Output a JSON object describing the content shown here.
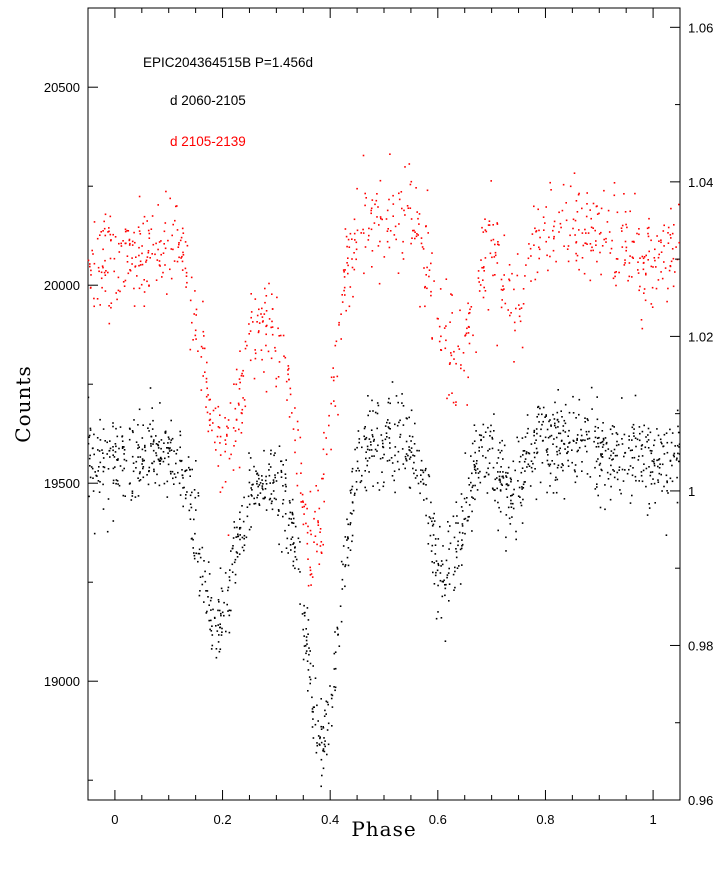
{
  "chart_data": {
    "type": "scatter",
    "title": "EPIC204364515B P=1.456d",
    "xlabel": "Phase",
    "ylabel": "Counts",
    "xlim": [
      -0.05,
      1.05
    ],
    "ylim": [
      18700,
      20700
    ],
    "y2lim": [
      0.96,
      1.0625
    ],
    "x_ticks": [
      0,
      0.2,
      0.4,
      0.6,
      0.8,
      1
    ],
    "x_tick_labels": [
      "0",
      "0.2",
      "0.4",
      "0.6",
      "0.8",
      "1"
    ],
    "y_ticks": [
      19000,
      19500,
      20000,
      20500
    ],
    "y_tick_labels": [
      "19000",
      "19500",
      "20000",
      "20500"
    ],
    "y2_ticks": [
      0.96,
      0.98,
      1.0,
      1.02,
      1.04,
      1.06
    ],
    "y2_tick_labels": [
      "0.96",
      "0.98",
      "1",
      "1.02",
      "1.04",
      "1.06"
    ],
    "grid": false,
    "legend_position": "top-left",
    "series": [
      {
        "name": "d 2060-2105",
        "color": "#000000",
        "baseline": 19620,
        "scatter_sd": 55,
        "dips": [
          {
            "x": 0.0,
            "depth": 60,
            "width": 0.1
          },
          {
            "x": 0.19,
            "depth": 470,
            "width": 0.032
          },
          {
            "x": 0.285,
            "depth": 120,
            "width": 0.04
          },
          {
            "x": 0.385,
            "depth": 780,
            "width": 0.032
          },
          {
            "x": 0.615,
            "depth": 360,
            "width": 0.03
          },
          {
            "x": 0.735,
            "depth": 140,
            "width": 0.025
          }
        ],
        "points": 1500
      },
      {
        "name": "d 2105-2139",
        "color": "#ff0000",
        "baseline": 20170,
        "scatter_sd": 65,
        "dips": [
          {
            "x": 0.0,
            "depth": 110,
            "width": 0.09
          },
          {
            "x": 0.2,
            "depth": 560,
            "width": 0.035
          },
          {
            "x": 0.285,
            "depth": 230,
            "width": 0.04
          },
          {
            "x": 0.37,
            "depth": 790,
            "width": 0.032
          },
          {
            "x": 0.63,
            "depth": 360,
            "width": 0.035
          },
          {
            "x": 0.745,
            "depth": 210,
            "width": 0.025
          }
        ],
        "points": 950
      }
    ]
  },
  "legend": {
    "title": "EPIC204364515B P=1.456d",
    "entry_black": "d 2060-2105",
    "entry_red": "d 2105-2139"
  }
}
